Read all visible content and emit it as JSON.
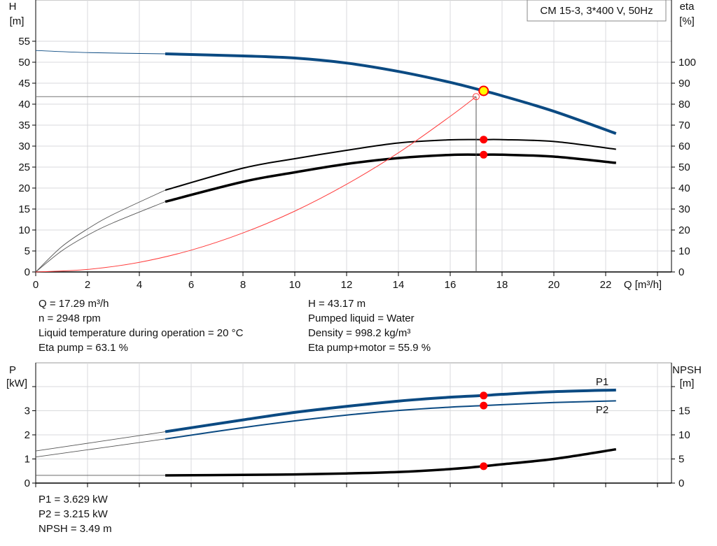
{
  "title_box": "CM 15-3, 3*400 V, 50Hz",
  "colors": {
    "head": "#0b4a82",
    "eta": "#000000",
    "system": "#ff3b3b",
    "power": "#0b4a82",
    "npsh": "#000000",
    "duty_point": "#ff0000",
    "duty_marker_fill": "#ffff00",
    "grid": "#d8dadc"
  },
  "chart_data": [
    {
      "type": "line",
      "xlabel": "Q [m³/h]",
      "xlim": [
        0,
        24
      ],
      "xticks": [
        "0",
        "2",
        "4",
        "6",
        "8",
        "10",
        "12",
        "14",
        "16",
        "18",
        "20",
        "22"
      ],
      "ylabel_left": {
        "name": "H",
        "unit": "[m]"
      },
      "ylim_left": [
        0,
        55
      ],
      "yticks_left": [
        "0",
        "5",
        "10",
        "15",
        "20",
        "25",
        "30",
        "35",
        "40",
        "45",
        "50",
        "55"
      ],
      "ylabel_right": {
        "name": "eta",
        "unit": "[%]"
      },
      "ylim_right": [
        0,
        110
      ],
      "yticks_right": [
        "0",
        "10",
        "20",
        "30",
        "40",
        "50",
        "60",
        "70",
        "80",
        "90",
        "100"
      ],
      "grid": true,
      "series": [
        {
          "id": "head",
          "axis": "left",
          "x": [
            0,
            2,
            5,
            8,
            10,
            12,
            14,
            16,
            17.29,
            18,
            20,
            22.4
          ],
          "y": [
            52.8,
            52.3,
            52.0,
            51.5,
            51.0,
            49.8,
            47.8,
            45.2,
            43.17,
            42.0,
            38.3,
            33.0
          ],
          "operating_from": 5
        },
        {
          "id": "eta_pump",
          "axis": "right",
          "x": [
            0,
            1,
            2,
            3,
            5,
            8,
            10,
            12,
            14,
            16,
            17.29,
            18,
            20,
            22.4
          ],
          "y": [
            0,
            12,
            20.5,
            27.5,
            39,
            49.5,
            54,
            58,
            61.5,
            63,
            63.1,
            63.1,
            62.2,
            58.5
          ],
          "operating_from": 5
        },
        {
          "id": "eta_pump_motor",
          "axis": "right",
          "x": [
            0,
            1,
            2,
            3,
            5,
            8,
            10,
            12,
            14,
            16,
            17.29,
            18,
            20,
            22.4
          ],
          "y": [
            0,
            10,
            17.5,
            23.5,
            33.5,
            43,
            47.5,
            51.5,
            54.3,
            55.8,
            55.9,
            55.9,
            55.0,
            52.0
          ],
          "operating_from": 5
        },
        {
          "id": "system",
          "axis": "left",
          "x": [
            0,
            2,
            4,
            6,
            8,
            10,
            12,
            14,
            16,
            17
          ],
          "y": [
            0,
            0.6,
            2.3,
            5.2,
            9.3,
            14.5,
            20.9,
            28.4,
            37.1,
            41.8
          ]
        }
      ],
      "duty_point": {
        "Q": 17.29,
        "H": 43.17,
        "eta_pump": 63.1,
        "eta_pump_motor": 55.9
      },
      "requested_point": {
        "Q": 17.0,
        "H": 41.8
      }
    },
    {
      "type": "line",
      "xlim": [
        0,
        24
      ],
      "ylabel_left": {
        "name": "P",
        "unit": "[kW]"
      },
      "ylim_left": [
        0,
        4
      ],
      "yticks_left": [
        "0",
        "1",
        "2",
        "3",
        ""
      ],
      "ylabel_right": {
        "name": "NPSH",
        "unit": "[m]"
      },
      "ylim_right": [
        0,
        20
      ],
      "yticks_right": [
        "0",
        "5",
        "10",
        "15",
        ""
      ],
      "grid": true,
      "series": [
        {
          "id": "P1",
          "name": "P1",
          "axis": "left",
          "x": [
            0,
            5,
            8,
            10,
            12,
            14,
            16,
            17.29,
            18,
            20,
            22.4
          ],
          "y": [
            1.33,
            2.13,
            2.62,
            2.93,
            3.18,
            3.4,
            3.56,
            3.629,
            3.68,
            3.79,
            3.86
          ],
          "operating_from": 5
        },
        {
          "id": "P2",
          "name": "P2",
          "axis": "left",
          "x": [
            0,
            5,
            8,
            10,
            12,
            14,
            16,
            17.29,
            18,
            20,
            22.4
          ],
          "y": [
            1.08,
            1.83,
            2.3,
            2.58,
            2.82,
            3.01,
            3.15,
            3.215,
            3.25,
            3.34,
            3.41
          ],
          "operating_from": 5
        },
        {
          "id": "NPSH",
          "axis": "right",
          "x": [
            0,
            5,
            8,
            10,
            12,
            14,
            16,
            17.29,
            18,
            20,
            22.4
          ],
          "y": [
            1.6,
            1.6,
            1.7,
            1.8,
            2.0,
            2.3,
            2.9,
            3.49,
            3.9,
            5.0,
            7.0
          ],
          "operating_from": 5
        }
      ],
      "duty_point": {
        "Q": 17.29,
        "P1": 3.629,
        "P2": 3.215,
        "NPSH": 3.49
      }
    }
  ],
  "info_top_left": [
    "Q = 17.29 m³/h",
    "n = 2948 rpm",
    "Liquid temperature during operation = 20 °C",
    "Eta pump = 63.1 %"
  ],
  "info_top_right": [
    "H = 43.17 m",
    "Pumped liquid = Water",
    "Density = 998.2 kg/m³",
    "Eta pump+motor = 55.9 %"
  ],
  "info_bottom": [
    "P1 = 3.629 kW",
    "P2 = 3.215 kW",
    "NPSH = 3.49 m"
  ]
}
